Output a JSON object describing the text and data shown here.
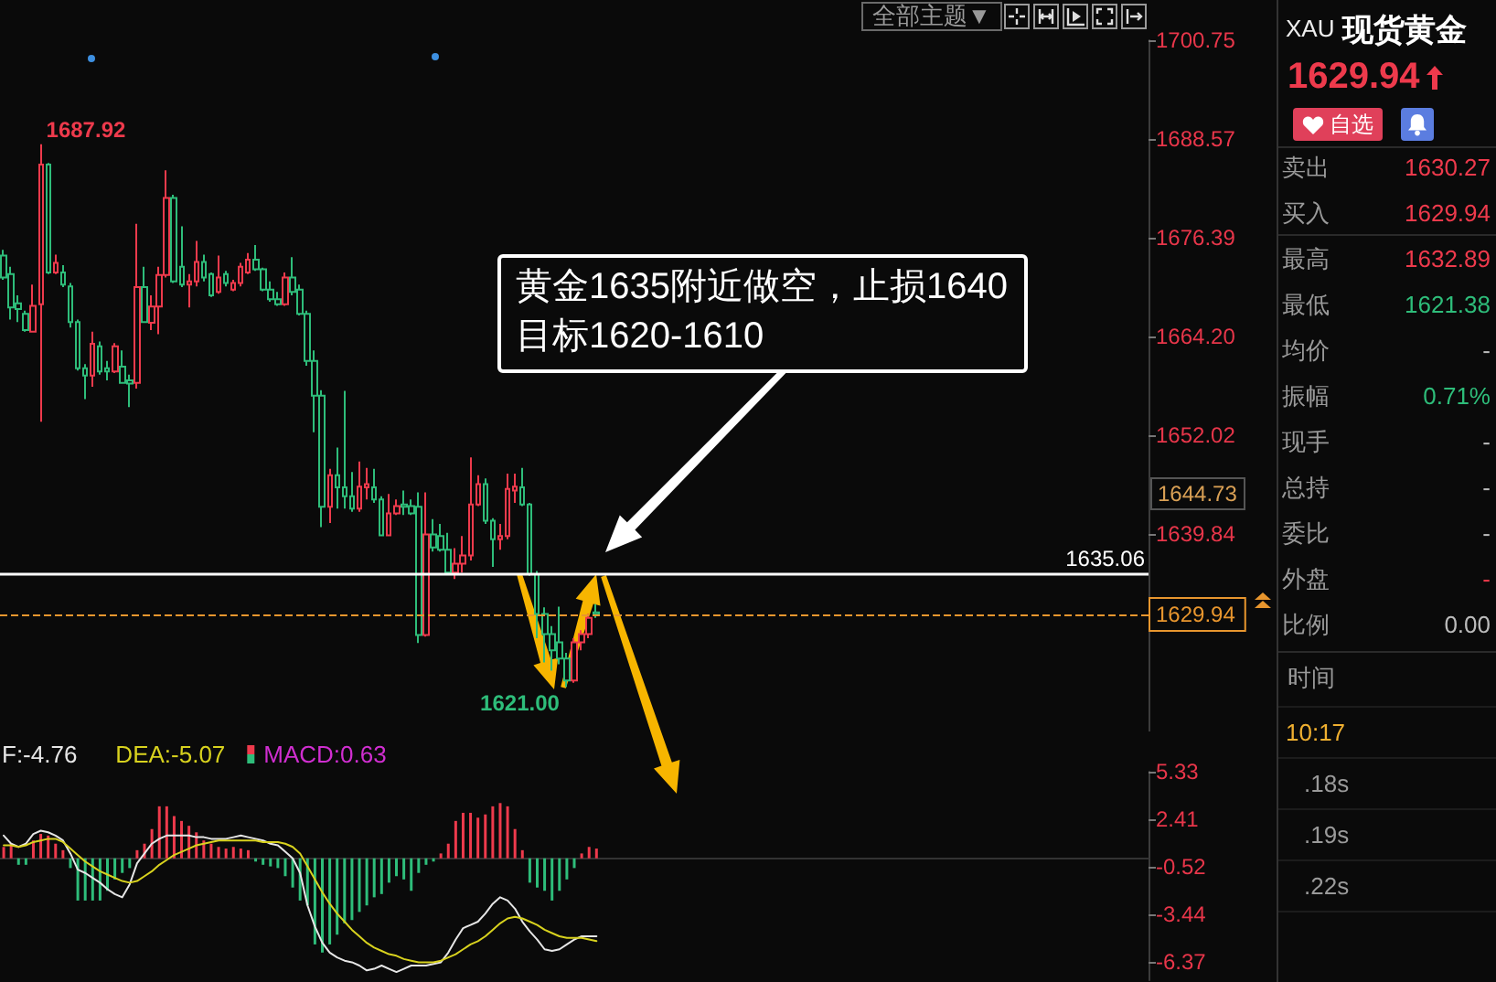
{
  "chart_data": [
    {
      "type": "candlestick",
      "categories": [
        null,
        null,
        null,
        null,
        null,
        null,
        null,
        null,
        null,
        null,
        null,
        null,
        null,
        null,
        null,
        null,
        null,
        null,
        null,
        null,
        null,
        null,
        null,
        null,
        null,
        null,
        null,
        null,
        null,
        null,
        null,
        null,
        null,
        null,
        null,
        null,
        null,
        null,
        null,
        null,
        null,
        null,
        null,
        null,
        null,
        null,
        null,
        null,
        null,
        null,
        null,
        null,
        null,
        null,
        null,
        null,
        null,
        null,
        null,
        null,
        null,
        null,
        null,
        null,
        null,
        null,
        null,
        null,
        null,
        null,
        null,
        null,
        null,
        null,
        null,
        null,
        null,
        null,
        null,
        null,
        null,
        null,
        null,
        null,
        null,
        null,
        null,
        null,
        null,
        null,
        null,
        null,
        null,
        null,
        null,
        null,
        null,
        null,
        null,
        null,
        null,
        null,
        null,
        null,
        null,
        null,
        null,
        null,
        null,
        null,
        null,
        null,
        null,
        null,
        null,
        null,
        null,
        null,
        null,
        null,
        null,
        null,
        null,
        null,
        null,
        null,
        null,
        null,
        null,
        null,
        null,
        null,
        null,
        null,
        null,
        null,
        null,
        null,
        null,
        null,
        null,
        null,
        null,
        null,
        null,
        null,
        null,
        null,
        null,
        null,
        null,
        null,
        null,
        null,
        null
      ],
      "ohlc": [
        [
          1674.2,
          1674.9,
          1671.2,
          1671.5
        ],
        [
          1671.9,
          1672.8,
          1666.3,
          1667.8
        ],
        [
          1668.3,
          1669.3,
          1666.0,
          1667.6
        ],
        [
          1667.0,
          1667.4,
          1664.8,
          1665.0
        ],
        [
          1664.8,
          1670.6,
          1664.8,
          1668.0
        ],
        [
          1668.2,
          1687.92,
          1653.7,
          1685.4
        ],
        [
          1685.4,
          1685.6,
          1671.9,
          1672.1
        ],
        [
          1672.1,
          1674.3,
          1671.9,
          1673.3
        ],
        [
          1672.1,
          1673.0,
          1670.3,
          1670.6
        ],
        [
          1670.4,
          1670.8,
          1665.3,
          1666.0
        ],
        [
          1666.0,
          1666.3,
          1660.0,
          1660.3
        ],
        [
          1660.3,
          1660.8,
          1656.5,
          1659.4
        ],
        [
          1659.4,
          1664.8,
          1658.0,
          1663.3
        ],
        [
          1663.0,
          1663.6,
          1659.5,
          1659.9
        ],
        [
          1660.3,
          1661.2,
          1658.8,
          1659.9
        ],
        [
          1659.9,
          1663.4,
          1659.7,
          1663.0
        ],
        [
          1660.5,
          1662.5,
          1658.4,
          1658.5
        ],
        [
          1658.8,
          1659.5,
          1655.5,
          1658.4
        ],
        [
          1658.5,
          1678.1,
          1657.8,
          1670.3
        ],
        [
          1670.3,
          1672.8,
          1665.9,
          1666.0
        ],
        [
          1665.9,
          1669.3,
          1665.0,
          1667.9
        ],
        [
          1667.9,
          1672.8,
          1664.5,
          1671.8
        ],
        [
          1671.8,
          1684.7,
          1671.5,
          1681.3
        ],
        [
          1681.3,
          1681.7,
          1670.8,
          1671.0
        ],
        [
          1672.8,
          1677.8,
          1670.3,
          1670.6
        ],
        [
          1670.6,
          1671.9,
          1667.8,
          1671.0
        ],
        [
          1671.0,
          1676.0,
          1670.4,
          1673.4
        ],
        [
          1673.4,
          1674.3,
          1671.0,
          1671.5
        ],
        [
          1671.9,
          1672.1,
          1669.1,
          1669.3
        ],
        [
          1669.7,
          1674.2,
          1669.5,
          1671.5
        ],
        [
          1671.9,
          1672.3,
          1670.4,
          1670.8
        ],
        [
          1670.0,
          1671.2,
          1669.8,
          1670.8
        ],
        [
          1670.8,
          1673.3,
          1670.4,
          1672.8
        ],
        [
          1672.1,
          1674.5,
          1671.9,
          1673.7
        ],
        [
          1673.7,
          1675.5,
          1672.3,
          1672.5
        ],
        [
          1672.5,
          1672.7,
          1669.8,
          1670.0
        ],
        [
          1670.0,
          1671.0,
          1668.5,
          1668.8
        ],
        [
          1668.8,
          1669.7,
          1668.0,
          1668.2
        ],
        [
          1668.2,
          1672.1,
          1668.0,
          1671.5
        ],
        [
          1671.5,
          1674.0,
          1669.3,
          1669.7
        ],
        [
          1670.0,
          1670.6,
          1666.8,
          1667.0
        ],
        [
          1667.0,
          1667.4,
          1660.6,
          1661.2
        ],
        [
          1661.2,
          1662.5,
          1652.4,
          1656.9
        ],
        [
          1656.9,
          1657.6,
          1640.7,
          1643.2
        ],
        [
          1643.2,
          1647.9,
          1641.2,
          1647.1
        ],
        [
          1647.1,
          1650.5,
          1643.0,
          1645.6
        ],
        [
          1645.6,
          1657.5,
          1643.0,
          1644.5
        ],
        [
          1644.5,
          1647.5,
          1642.6,
          1643.0
        ],
        [
          1643.0,
          1648.8,
          1642.6,
          1645.7
        ],
        [
          1645.6,
          1648.0,
          1644.1,
          1646.0
        ],
        [
          1645.6,
          1647.9,
          1643.7,
          1644.1
        ],
        [
          1644.1,
          1644.5,
          1639.6,
          1639.7
        ],
        [
          1639.7,
          1644.8,
          1639.6,
          1642.4
        ],
        [
          1642.4,
          1644.1,
          1642.2,
          1643.3
        ],
        [
          1643.5,
          1645.2,
          1642.2,
          1643.2
        ],
        [
          1643.3,
          1644.1,
          1642.2,
          1642.4
        ],
        [
          1643.2,
          1645.0,
          1626.4,
          1627.4
        ],
        [
          1627.4,
          1645.0,
          1627.2,
          1639.8
        ],
        [
          1639.8,
          1641.7,
          1637.7,
          1638.2
        ],
        [
          1639.6,
          1641.1,
          1637.7,
          1637.9
        ],
        [
          1637.9,
          1640.0,
          1634.9,
          1635.1
        ],
        [
          1635.1,
          1638.1,
          1634.3,
          1636.2
        ],
        [
          1636.2,
          1639.6,
          1635.1,
          1637.2
        ],
        [
          1637.2,
          1649.3,
          1636.6,
          1643.5
        ],
        [
          1643.5,
          1647.1,
          1643.3,
          1646.0
        ],
        [
          1646.0,
          1646.7,
          1641.1,
          1641.5
        ],
        [
          1641.5,
          1641.8,
          1635.8,
          1639.2
        ],
        [
          1639.2,
          1641.1,
          1637.9,
          1639.6
        ],
        [
          1639.6,
          1647.3,
          1639.2,
          1645.4
        ],
        [
          1645.2,
          1647.3,
          1643.7,
          1645.7
        ],
        [
          1645.6,
          1648.0,
          1643.3,
          1643.5
        ],
        [
          1643.5,
          1643.7,
          1634.7,
          1634.9
        ],
        [
          1634.9,
          1635.3,
          1627.0,
          1630.0
        ],
        [
          1630.0,
          1630.8,
          1624.0,
          1627.5
        ],
        [
          1627.5,
          1628.5,
          1623.0,
          1625.5
        ],
        [
          1626.5,
          1630.9,
          1623.8,
          1624.5
        ],
        [
          1624.5,
          1625.2,
          1621.0,
          1621.8
        ],
        [
          1621.8,
          1627.0,
          1621.5,
          1626.5
        ],
        [
          1626.5,
          1628.0,
          1625.5,
          1627.5
        ],
        [
          1627.5,
          1630.0,
          1627.0,
          1629.5
        ],
        [
          1630.2,
          1631.2,
          1629.5,
          1629.94
        ],
        null,
        null,
        null,
        null,
        null,
        null,
        null,
        null,
        null,
        null,
        null,
        null,
        null,
        null,
        null,
        null,
        null,
        null,
        null,
        null,
        null,
        null,
        null,
        null,
        null,
        null,
        null,
        null,
        null,
        null,
        null,
        null,
        null,
        null,
        null,
        null,
        null,
        null,
        null,
        null,
        null,
        null,
        null,
        null,
        null,
        null,
        null,
        null,
        null,
        null,
        null,
        null,
        null,
        null,
        null,
        null,
        null,
        null,
        null,
        null,
        null,
        null,
        null,
        null,
        null,
        null,
        null,
        null,
        null,
        null,
        null,
        null,
        null,
        null
      ],
      "colors": [
        "#2ebd7a",
        "#2ebd7a",
        "#2ebd7a",
        "#2ebd7a",
        "#ee3a4c",
        "#ee3a4c",
        "#2ebd7a",
        "#ee3a4c",
        "#2ebd7a",
        "#2ebd7a",
        "#2ebd7a",
        "#2ebd7a",
        "#ee3a4c",
        "#2ebd7a",
        "#2ebd7a",
        "#ee3a4c",
        "#2ebd7a",
        "#2ebd7a",
        "#ee3a4c",
        "#2ebd7a",
        "#ee3a4c",
        "#ee3a4c",
        "#ee3a4c",
        "#2ebd7a",
        "#2ebd7a",
        "#ee3a4c",
        "#ee3a4c",
        "#2ebd7a",
        "#2ebd7a",
        "#ee3a4c",
        "#2ebd7a",
        "#ee3a4c",
        "#ee3a4c",
        "#ee3a4c",
        "#2ebd7a",
        "#2ebd7a",
        "#2ebd7a",
        "#2ebd7a",
        "#ee3a4c",
        "#2ebd7a",
        "#2ebd7a",
        "#2ebd7a",
        "#2ebd7a",
        "#2ebd7a",
        "#ee3a4c",
        "#2ebd7a",
        "#2ebd7a",
        "#2ebd7a",
        "#ee3a4c",
        "#ee3a4c",
        "#2ebd7a",
        "#2ebd7a",
        "#ee3a4c",
        "#ee3a4c",
        "#2ebd7a",
        "#2ebd7a",
        "#2ebd7a",
        "#ee3a4c",
        "#2ebd7a",
        "#2ebd7a",
        "#2ebd7a",
        "#ee3a4c",
        "#ee3a4c",
        "#ee3a4c",
        "#ee3a4c",
        "#2ebd7a",
        "#2ebd7a",
        "#ee3a4c",
        "#ee3a4c",
        "#ee3a4c",
        "#2ebd7a",
        "#2ebd7a",
        "#2ebd7a",
        "#2ebd7a",
        "#2ebd7a",
        "#2ebd7a",
        "#2ebd7a",
        "#ee3a4c",
        "#ee3a4c",
        "#ee3a4c",
        "#2ebd7a",
        null,
        null,
        null,
        null,
        null,
        null,
        null,
        null,
        null,
        null,
        null,
        null,
        null,
        null,
        null,
        null,
        null,
        null,
        null,
        null,
        null,
        null,
        null,
        null,
        null,
        null,
        null,
        null,
        null,
        null,
        null,
        null,
        null,
        null,
        null,
        null,
        null,
        null,
        null,
        null,
        null,
        null,
        null,
        null,
        null,
        null,
        null,
        null,
        null,
        null,
        null,
        null,
        null,
        null,
        null,
        null,
        null,
        null,
        null,
        null,
        null,
        null,
        null,
        null,
        null,
        null,
        null,
        null,
        null,
        null,
        null,
        null,
        null,
        null
      ],
      "ylim": [
        1615.5,
        1700.75
      ],
      "yticks": [
        1700.75,
        1688.57,
        1676.39,
        {
          "value": 1664.2,
          "label": "1664.20"
        },
        1652.02,
        1639.84
      ],
      "tick_labels": "y",
      "ref_lines": [
        {
          "axis": "y",
          "value": 1635.06,
          "label": "1635.06",
          "color": "#ffffff",
          "line_style": "solid"
        },
        {
          "axis": "y",
          "value": 1629.94,
          "label": "1629.94",
          "color": "#e8962e",
          "line_style": "dashed"
        }
      ],
      "annotations": [
        "1687.92",
        "1621.00",
        "黄金1635附近做空，止损1640\n目标1620-1610",
        "1644.73",
        "全部主题▼"
      ]
    },
    {
      "type": "line",
      "categories": [
        null,
        null,
        null,
        null,
        null,
        null,
        null,
        null,
        null,
        null,
        null,
        null,
        null,
        null,
        null,
        null,
        null,
        null,
        null,
        null,
        null,
        null,
        null,
        null,
        null,
        null,
        null,
        null,
        null,
        null,
        null,
        null,
        null,
        null,
        null,
        null,
        null,
        null,
        null,
        null,
        null,
        null,
        null,
        null,
        null,
        null,
        null,
        null,
        null,
        null,
        null,
        null,
        null,
        null,
        null,
        null,
        null,
        null,
        null,
        null,
        null,
        null,
        null,
        null,
        null,
        null,
        null,
        null,
        null,
        null,
        null,
        null,
        null,
        null,
        null,
        null,
        null,
        null,
        null,
        null,
        null,
        null,
        null,
        null,
        null,
        null,
        null,
        null,
        null,
        null,
        null,
        null,
        null,
        null,
        null,
        null,
        null,
        null,
        null,
        null,
        null,
        null,
        null,
        null,
        null,
        null,
        null,
        null,
        null,
        null,
        null,
        null,
        null,
        null,
        null,
        null,
        null,
        null,
        null,
        null,
        null,
        null,
        null,
        null,
        null,
        null,
        null,
        null,
        null,
        null,
        null,
        null,
        null,
        null,
        null,
        null,
        null,
        null,
        null,
        null,
        null,
        null,
        null,
        null,
        null,
        null,
        null,
        null,
        null,
        null,
        null,
        null,
        null,
        null,
        null
      ],
      "series": [
        {
          "name": "F:-4.76",
          "type": "line",
          "color": "#e6e6e6",
          "values": [
            1.4,
            0.9,
            0.7,
            0.9,
            1.5,
            1.7,
            1.6,
            1.4,
            1.1,
            0.3,
            -0.7,
            -0.9,
            -1.2,
            -1.5,
            -1.9,
            -2.2,
            -2.4,
            -1.6,
            -0.3,
            0.3,
            0.9,
            1.2,
            1.4,
            1.4,
            1.4,
            1.4,
            1.3,
            1.3,
            1.2,
            1.2,
            1.2,
            1.3,
            1.4,
            1.3,
            1.2,
            1.1,
            0.9,
            0.8,
            0.4,
            0.0,
            -0.9,
            -2.9,
            -4.2,
            -5.2,
            -5.8,
            -6.1,
            -6.3,
            -6.4,
            -6.6,
            -6.9,
            -6.8,
            -6.6,
            -6.8,
            -7.0,
            -6.8,
            -6.6,
            -6.6,
            -6.6,
            -6.5,
            -6.4,
            -5.8,
            -5.0,
            -4.3,
            -4.1,
            -3.9,
            -3.4,
            -2.8,
            -2.4,
            -2.6,
            -3.1,
            -3.9,
            -4.5,
            -5.0,
            -5.6,
            -5.7,
            -5.6,
            -5.3,
            -5.0,
            -4.8,
            -4.8,
            -4.8,
            null,
            null,
            null,
            null,
            null,
            null,
            null,
            null,
            null,
            null,
            null,
            null,
            null,
            null,
            null,
            null,
            null,
            null,
            null,
            null,
            null,
            null,
            null,
            null,
            null,
            null,
            null,
            null,
            null,
            null,
            null,
            null,
            null,
            null,
            null,
            null,
            null,
            null,
            null,
            null,
            null,
            null,
            null,
            null,
            null,
            null,
            null,
            null,
            null,
            null,
            null,
            null,
            null,
            null,
            null,
            null,
            null,
            null,
            null,
            null,
            null,
            null,
            null,
            null,
            null,
            null,
            null,
            null,
            null,
            null,
            null,
            null,
            null,
            null
          ]
        },
        {
          "name": "DEA:-5.07",
          "type": "line",
          "color": "#d8d21e",
          "values": [
            0.8,
            0.8,
            0.7,
            0.8,
            1.0,
            1.1,
            1.2,
            1.2,
            1.0,
            0.6,
            0.2,
            -0.2,
            -0.5,
            -0.8,
            -1.0,
            -1.2,
            -1.4,
            -1.5,
            -1.4,
            -1.1,
            -0.8,
            -0.4,
            -0.1,
            0.2,
            0.4,
            0.6,
            0.8,
            0.9,
            1.0,
            1.1,
            1.1,
            1.1,
            1.1,
            1.1,
            1.1,
            1.0,
            1.0,
            1.0,
            0.9,
            0.7,
            0.3,
            -0.5,
            -1.3,
            -2.1,
            -2.8,
            -3.4,
            -3.9,
            -4.4,
            -4.8,
            -5.2,
            -5.5,
            -5.7,
            -5.9,
            -6.0,
            -6.2,
            -6.3,
            -6.4,
            -6.4,
            -6.4,
            -6.3,
            -6.1,
            -5.9,
            -5.6,
            -5.3,
            -5.1,
            -4.8,
            -4.4,
            -4.0,
            -3.7,
            -3.6,
            -3.7,
            -3.9,
            -4.1,
            -4.4,
            -4.6,
            -4.8,
            -4.9,
            -4.9,
            -4.9,
            -5.0,
            -5.1,
            null,
            null,
            null,
            null,
            null,
            null,
            null,
            null,
            null,
            null,
            null,
            null,
            null,
            null,
            null,
            null,
            null,
            null,
            null,
            null,
            null,
            null,
            null,
            null,
            null,
            null,
            null,
            null,
            null,
            null,
            null,
            null,
            null,
            null,
            null,
            null,
            null,
            null,
            null,
            null,
            null,
            null,
            null,
            null,
            null,
            null,
            null,
            null,
            null,
            null,
            null,
            null,
            null,
            null,
            null,
            null,
            null,
            null,
            null,
            null,
            null,
            null,
            null,
            null,
            null,
            null,
            null,
            null,
            null,
            null,
            null,
            null,
            null,
            null
          ]
        },
        {
          "name": "MACD:0.63",
          "type": "bar",
          "color": "#d02ed0",
          "values": [
            0.7,
            0.9,
            -0.4,
            -0.4,
            1.1,
            1.5,
            1.4,
            0.9,
            0.5,
            -0.6,
            -2.6,
            -2.6,
            -2.6,
            -2.6,
            -2.0,
            -1.3,
            -0.9,
            -0.6,
            0.5,
            0.9,
            1.8,
            3.2,
            3.2,
            2.6,
            2.3,
            2.0,
            1.6,
            1.1,
            0.9,
            0.7,
            0.6,
            0.7,
            0.6,
            0.5,
            -0.2,
            -0.4,
            -0.5,
            -0.6,
            -1.1,
            -1.8,
            -2.6,
            -2.9,
            -5.3,
            -5.8,
            -5.3,
            -4.7,
            -4.0,
            -3.8,
            -3.3,
            -2.9,
            -2.4,
            -2.2,
            -1.5,
            -1.1,
            -1.3,
            -2.0,
            -0.9,
            -0.4,
            -0.2,
            0.3,
            0.9,
            2.3,
            2.8,
            2.8,
            2.5,
            2.7,
            3.2,
            3.4,
            3.2,
            1.8,
            0.5,
            -1.5,
            -1.8,
            -2.0,
            -2.6,
            -2.0,
            -1.3,
            -0.6,
            0.3,
            0.7,
            0.6,
            null,
            null,
            null,
            null,
            null,
            null,
            null,
            null,
            null,
            null,
            null,
            null,
            null,
            null,
            null,
            null,
            null,
            null,
            null,
            null,
            null,
            null,
            null,
            null,
            null,
            null,
            null,
            null,
            null,
            null,
            null,
            null,
            null,
            null,
            null,
            null,
            null,
            null,
            null,
            null,
            null,
            null,
            null,
            null,
            null,
            null,
            null,
            null,
            null,
            null,
            null,
            null,
            null,
            null,
            null,
            null,
            null,
            null,
            null,
            null,
            null,
            null,
            null,
            null,
            null,
            null,
            null,
            null,
            null,
            null,
            null,
            null,
            null,
            null
          ],
          "colors": [
            "#ee3a4c",
            "#ee3a4c",
            "#2ebd7a",
            "#2ebd7a",
            "#ee3a4c",
            "#ee3a4c",
            "#ee3a4c",
            "#ee3a4c",
            "#ee3a4c",
            "#2ebd7a",
            "#2ebd7a",
            "#2ebd7a",
            "#2ebd7a",
            "#2ebd7a",
            "#2ebd7a",
            "#2ebd7a",
            "#2ebd7a",
            "#2ebd7a",
            "#ee3a4c",
            "#ee3a4c",
            "#ee3a4c",
            "#ee3a4c",
            "#ee3a4c",
            "#ee3a4c",
            "#ee3a4c",
            "#ee3a4c",
            "#ee3a4c",
            "#ee3a4c",
            "#ee3a4c",
            "#ee3a4c",
            "#ee3a4c",
            "#ee3a4c",
            "#ee3a4c",
            "#ee3a4c",
            "#2ebd7a",
            "#2ebd7a",
            "#2ebd7a",
            "#2ebd7a",
            "#2ebd7a",
            "#2ebd7a",
            "#2ebd7a",
            "#2ebd7a",
            "#2ebd7a",
            "#2ebd7a",
            "#2ebd7a",
            "#2ebd7a",
            "#2ebd7a",
            "#2ebd7a",
            "#2ebd7a",
            "#2ebd7a",
            "#2ebd7a",
            "#2ebd7a",
            "#2ebd7a",
            "#2ebd7a",
            "#2ebd7a",
            "#2ebd7a",
            "#2ebd7a",
            "#2ebd7a",
            "#2ebd7a",
            "#ee3a4c",
            "#ee3a4c",
            "#ee3a4c",
            "#ee3a4c",
            "#ee3a4c",
            "#ee3a4c",
            "#ee3a4c",
            "#ee3a4c",
            "#ee3a4c",
            "#ee3a4c",
            "#ee3a4c",
            "#ee3a4c",
            "#2ebd7a",
            "#2ebd7a",
            "#2ebd7a",
            "#2ebd7a",
            "#2ebd7a",
            "#2ebd7a",
            "#2ebd7a",
            "#ee3a4c",
            "#ee3a4c",
            "#ee3a4c",
            null,
            null,
            null,
            null,
            null,
            null,
            null,
            null,
            null,
            null,
            null,
            null,
            null,
            null,
            null,
            null,
            null,
            null,
            null,
            null,
            null,
            null,
            null,
            null,
            null,
            null,
            null,
            null,
            null,
            null,
            null,
            null,
            null,
            null,
            null,
            null,
            null,
            null,
            null,
            null,
            null,
            null,
            null,
            null,
            null,
            null,
            null,
            null,
            null,
            null,
            null,
            null,
            null,
            null,
            null,
            null,
            null,
            null,
            null,
            null,
            null,
            null,
            null,
            null,
            null,
            null,
            null,
            null,
            null,
            null,
            null,
            null,
            null,
            null
          ]
        }
      ],
      "ylim": [
        -7.5,
        5.33
      ],
      "yticks": [
        5.33,
        2.41,
        -0.52,
        -3.44,
        -6.37
      ],
      "tick_labels": "y",
      "legend": "top left"
    },
    {
      "type": "other",
      "title": "现货黄金",
      "subtitle": "XAU",
      "categories": [
        "卖出",
        "买入",
        "最高",
        "最低",
        "均价",
        "振幅",
        "现手",
        "总持",
        "委比",
        "外盘",
        "比例"
      ],
      "value_labels": [
        "1630.27",
        "1629.94",
        "1632.89",
        "1621.38",
        "-",
        "0.71%",
        "-",
        "-",
        "-",
        "-",
        "0.00"
      ],
      "colors": [
        "#ee3a4c",
        "#ee3a4c",
        "#ee3a4c",
        "#2ebd7a",
        "#bbbbbb",
        "#2ebd7a",
        "#bbbbbb",
        "#bbbbbb",
        "#bbbbbb",
        "#ee3a4c",
        "#bbbbbb"
      ],
      "annotations": [
        "1629.94",
        "自选",
        "时间",
        "10:17",
        ".18s",
        ".19s",
        ".22s"
      ]
    }
  ]
}
